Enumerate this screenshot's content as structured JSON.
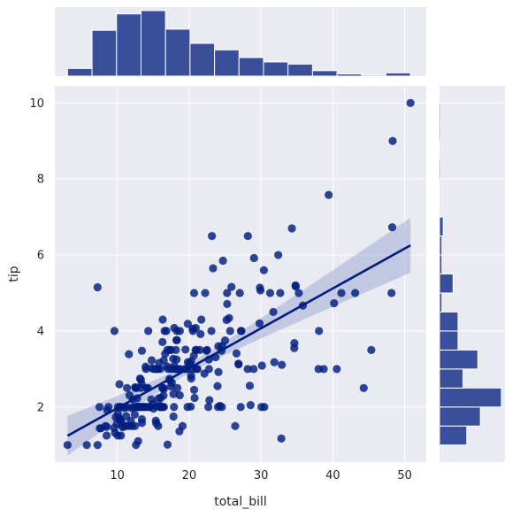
{
  "chart_data": {
    "type": "scatter",
    "xlabel": "total_bill",
    "ylabel": "tip",
    "xlim": [
      1.3,
      53.0
    ],
    "ylim": [
      0.55,
      10.45
    ],
    "x_ticks": [
      10,
      20,
      30,
      40,
      50
    ],
    "y_ticks": [
      2,
      4,
      6,
      8,
      10
    ],
    "grid": true,
    "colors": {
      "background": "#eaeaf2",
      "grid": "#ffffff",
      "points": "#001f80",
      "line": "#001c7f",
      "band": "#9aa6cf",
      "hist": "#3a4f9c",
      "hist_edge": "#ffffff"
    },
    "scatter": {
      "x": [
        16.99,
        10.34,
        21.01,
        23.68,
        24.59,
        25.29,
        8.77,
        26.88,
        15.04,
        14.78,
        10.27,
        35.26,
        15.42,
        18.43,
        14.83,
        21.58,
        10.33,
        16.29,
        16.97,
        20.65,
        17.92,
        20.29,
        15.77,
        39.42,
        19.82,
        17.81,
        13.37,
        12.69,
        21.7,
        19.65,
        9.55,
        18.35,
        15.06,
        20.69,
        17.78,
        24.06,
        16.31,
        16.93,
        18.69,
        31.27,
        16.04,
        17.46,
        13.94,
        9.68,
        30.4,
        18.29,
        22.23,
        32.4,
        28.55,
        18.04,
        12.54,
        10.29,
        34.81,
        9.94,
        25.56,
        19.49,
        38.01,
        26.41,
        11.24,
        48.27,
        20.29,
        13.81,
        11.02,
        18.29,
        17.59,
        20.08,
        16.45,
        3.07,
        20.23,
        15.01,
        12.02,
        17.07,
        26.86,
        25.28,
        14.73,
        10.51,
        17.92,
        27.2,
        22.76,
        17.29,
        19.44,
        16.66,
        10.07,
        32.68,
        15.98,
        34.83,
        13.03,
        18.28,
        24.71,
        21.16,
        28.97,
        22.49,
        5.75,
        16.32,
        22.75,
        40.17,
        27.28,
        12.03,
        21.01,
        12.46,
        11.35,
        15.38,
        44.3,
        22.42,
        20.92,
        15.36,
        20.49,
        25.21,
        18.24,
        14.31,
        14.0,
        7.25,
        38.07,
        23.95,
        25.71,
        17.31,
        29.93,
        10.65,
        12.43,
        24.08,
        11.69,
        13.42,
        14.26,
        15.95,
        12.48,
        29.8,
        8.52,
        14.52,
        11.38,
        22.82,
        19.08,
        20.27,
        11.17,
        12.26,
        18.26,
        8.51,
        10.33,
        14.15,
        16.0,
        13.16,
        17.47,
        34.3,
        41.19,
        27.05,
        16.43,
        8.35,
        18.64,
        11.87,
        9.78,
        7.51,
        14.07,
        13.13,
        17.26,
        24.55,
        19.77,
        29.85,
        48.17,
        25.0,
        13.39,
        16.49,
        21.5,
        12.66,
        16.21,
        13.81,
        17.51,
        24.52,
        20.76,
        31.71,
        10.59,
        10.63,
        50.81,
        15.81,
        7.25,
        31.85,
        16.82,
        32.9,
        17.89,
        14.48,
        9.6,
        34.63,
        34.65,
        23.33,
        45.35,
        23.17,
        40.55,
        20.69,
        20.9,
        30.46,
        18.15,
        23.1,
        15.69,
        19.81,
        28.44,
        15.48,
        16.58,
        7.56,
        10.34,
        43.11,
        13.0,
        13.51,
        18.71,
        12.74,
        13.0,
        16.4,
        20.53,
        16.47,
        26.59,
        38.73,
        24.27,
        12.76,
        30.06,
        25.89,
        48.33,
        13.27,
        28.17,
        12.9,
        28.15,
        11.59,
        7.74,
        30.14,
        12.16,
        13.42,
        8.58,
        15.98,
        13.42,
        16.27,
        10.09,
        20.45,
        13.28,
        22.12,
        24.01,
        15.69,
        11.61,
        10.77,
        15.53,
        10.07,
        12.6,
        32.83,
        35.83,
        29.03,
        27.18,
        22.67,
        17.82,
        18.78
      ],
      "y": [
        1.01,
        1.66,
        3.5,
        3.31,
        3.61,
        4.71,
        2.0,
        3.12,
        1.96,
        3.23,
        1.71,
        5.0,
        1.57,
        3.0,
        3.02,
        3.92,
        1.67,
        3.71,
        3.5,
        3.35,
        4.08,
        2.75,
        2.23,
        7.58,
        3.18,
        2.34,
        2.0,
        2.0,
        4.3,
        3.0,
        1.45,
        2.5,
        3.0,
        2.45,
        3.27,
        3.6,
        2.0,
        3.07,
        2.31,
        5.0,
        2.24,
        2.54,
        3.06,
        1.32,
        5.6,
        3.0,
        5.0,
        6.0,
        2.05,
        3.0,
        2.5,
        2.6,
        5.2,
        1.56,
        4.34,
        3.51,
        3.0,
        1.5,
        1.76,
        6.73,
        3.21,
        2.0,
        1.98,
        3.76,
        2.64,
        3.15,
        2.47,
        1.0,
        2.01,
        2.09,
        1.97,
        3.0,
        3.14,
        5.0,
        2.2,
        1.25,
        3.08,
        4.0,
        3.0,
        2.71,
        3.0,
        3.4,
        1.83,
        5.0,
        2.03,
        5.17,
        2.0,
        4.0,
        5.85,
        3.0,
        3.0,
        3.5,
        1.0,
        4.3,
        3.25,
        4.73,
        4.0,
        1.5,
        3.0,
        1.5,
        2.5,
        3.0,
        2.5,
        3.48,
        4.08,
        1.64,
        4.06,
        4.29,
        3.76,
        4.0,
        3.0,
        1.0,
        4.0,
        2.55,
        4.0,
        3.5,
        5.07,
        1.5,
        1.8,
        2.92,
        2.31,
        1.68,
        2.5,
        2.0,
        2.52,
        4.2,
        1.48,
        2.0,
        2.0,
        2.18,
        1.5,
        2.83,
        1.5,
        2.0,
        3.25,
        1.25,
        2.0,
        2.0,
        2.0,
        2.75,
        3.5,
        6.7,
        5.0,
        5.0,
        2.3,
        1.5,
        1.36,
        1.63,
        1.73,
        2.0,
        2.5,
        2.0,
        2.74,
        2.0,
        2.0,
        5.14,
        5.0,
        3.75,
        2.61,
        2.0,
        3.5,
        2.5,
        2.0,
        2.0,
        3.0,
        3.48,
        2.24,
        4.5,
        1.61,
        2.0,
        10.0,
        3.16,
        5.15,
        3.18,
        4.0,
        3.11,
        2.0,
        2.0,
        4.0,
        3.55,
        3.68,
        5.65,
        3.5,
        6.5,
        3.0,
        5.0,
        3.5,
        2.0,
        3.5,
        4.0,
        1.5,
        4.19,
        2.56,
        2.02,
        4.0,
        1.44,
        2.0,
        5.0,
        2.0,
        2.0,
        4.0,
        2.01,
        2.0,
        2.5,
        4.0,
        3.23,
        3.41,
        3.0,
        2.03,
        2.23,
        2.0,
        5.16,
        9.0,
        2.5,
        6.5,
        1.1,
        3.0,
        1.5,
        1.44,
        3.09,
        2.2,
        3.48,
        1.92,
        3.0,
        1.58,
        2.5,
        2.0,
        3.0,
        2.72,
        2.88,
        2.0,
        3.0,
        3.39,
        1.47,
        3.0,
        1.25,
        1.0,
        1.17,
        4.67,
        5.92,
        2.0,
        2.0,
        1.75,
        3.0
      ]
    },
    "regression": {
      "x_range": [
        3.07,
        50.81
      ],
      "intercept": 0.92,
      "slope": 0.105,
      "ci_halfwidth_at_ends": [
        0.52,
        0.72
      ],
      "ci_halfwidth_at_center": 0.13,
      "x_center": 19.8
    },
    "hist_x": {
      "bin_edges": [
        3.07,
        6.48,
        9.89,
        13.3,
        16.71,
        20.12,
        23.53,
        26.94,
        30.35,
        33.76,
        37.17,
        40.58,
        43.99,
        47.4,
        50.81
      ],
      "counts": [
        7,
        42,
        57,
        60,
        43,
        30,
        24,
        17,
        13,
        11,
        5,
        2,
        1,
        3
      ]
    },
    "hist_y": {
      "bin_edges": [
        1.0,
        1.5,
        2.0,
        2.5,
        3.0,
        3.5,
        4.0,
        4.5,
        5.0,
        5.5,
        6.0,
        6.5,
        7.0,
        7.5,
        8.0,
        8.5,
        9.0,
        9.5,
        10.0
      ],
      "counts": [
        22,
        33,
        50,
        19,
        31,
        15,
        15,
        2,
        11,
        2,
        2,
        3,
        0,
        0,
        1,
        0,
        1,
        1
      ]
    }
  }
}
